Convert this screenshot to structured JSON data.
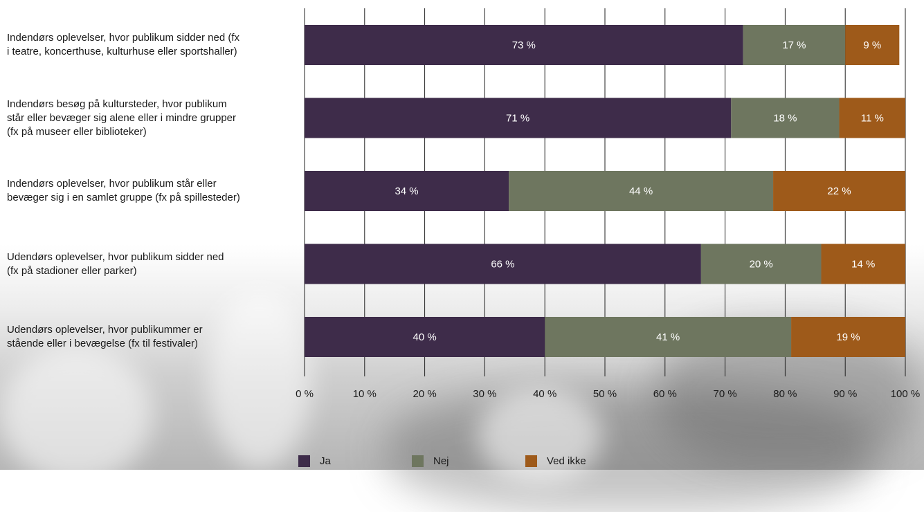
{
  "chart_data": {
    "type": "bar",
    "orientation": "horizontal",
    "stacked": true,
    "categories": [
      "Indendørs oplevelser, hvor publikum sidder ned (fx\ni teatre, koncerthuse, kulturhuse eller sportshaller)",
      "Indendørs besøg på kultursteder, hvor publikum\nstår eller bevæger sig alene eller i mindre grupper\n(fx på museer eller biblioteker)",
      "Indendørs oplevelser, hvor publikum står eller\nbevæger sig i en samlet gruppe (fx på spillesteder)",
      "Udendørs oplevelser, hvor publikum sidder ned\n(fx på stadioner eller parker)",
      "Udendørs oplevelser, hvor publikummer er\nstående eller i bevægelse (fx til festivaler)"
    ],
    "series": [
      {
        "name": "Ja",
        "color": "#3e2c4a",
        "values": [
          73,
          71,
          34,
          66,
          40
        ]
      },
      {
        "name": "Nej",
        "color": "#6e765f",
        "values": [
          17,
          18,
          44,
          20,
          41
        ]
      },
      {
        "name": "Ved ikke",
        "color": "#9e5a1a",
        "values": [
          9,
          11,
          22,
          14,
          19
        ]
      }
    ],
    "value_labels": [
      [
        "73 %",
        "17 %",
        "9 %"
      ],
      [
        "71 %",
        "18 %",
        "11 %"
      ],
      [
        "34 %",
        "44 %",
        "22 %"
      ],
      [
        "66 %",
        "20 %",
        "14 %"
      ],
      [
        "40 %",
        "41 %",
        "19 %"
      ]
    ],
    "x_ticks": [
      "0 %",
      "10 %",
      "20 %",
      "30 %",
      "40 %",
      "50 %",
      "60 %",
      "70 %",
      "80 %",
      "90 %",
      "100 %"
    ],
    "xlim": [
      0,
      100
    ],
    "grid": true,
    "legend_position": "bottom"
  }
}
